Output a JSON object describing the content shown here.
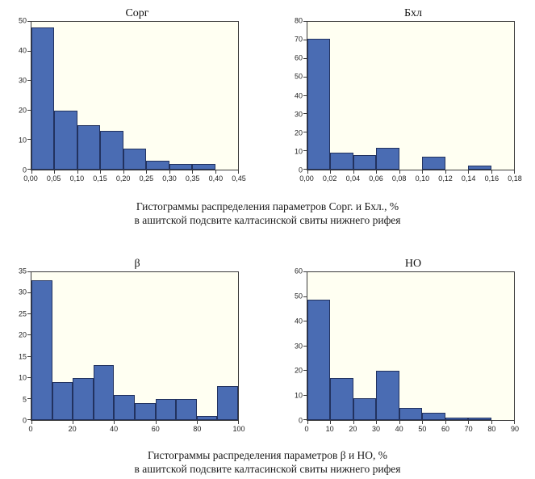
{
  "figure": {
    "captions": [
      {
        "line1": "Гистограммы распределения параметров Сорг. и Бхл., %",
        "line2": "в ашитской подсвите калтасинской свиты нижнего рифея"
      },
      {
        "line1": "Гистограммы распределения параметров β и НО, %",
        "line2": "в ашитской подсвите калтасинской свиты нижнего рифея"
      }
    ]
  },
  "colors": {
    "bar_fill": "#4a6cb3",
    "bar_border": "#22325f",
    "plot_bg": "#fffff2",
    "axis_color": "#3a3a3a"
  },
  "chart_data": [
    {
      "id": "corg",
      "type": "bar",
      "title": "Сорг",
      "xlabel": "",
      "ylabel": "",
      "bin_width": 0.05,
      "x_tick_labels": [
        "0,00",
        "0,05",
        "0,10",
        "0,15",
        "0,20",
        "0,25",
        "0,30",
        "0,35",
        "0,40",
        "0,45"
      ],
      "y_ticks": [
        0,
        10,
        20,
        30,
        40,
        50
      ],
      "ylim": [
        0,
        50
      ],
      "values": [
        48,
        20,
        15,
        13,
        7,
        3,
        2,
        2,
        0
      ],
      "grid": false,
      "legend": false
    },
    {
      "id": "bhl",
      "type": "bar",
      "title": "Бхл",
      "xlabel": "",
      "ylabel": "",
      "bin_width": 0.02,
      "x_tick_labels": [
        "0,00",
        "0,02",
        "0,04",
        "0,06",
        "0,08",
        "0,10",
        "0,12",
        "0,14",
        "0,16",
        "0,18"
      ],
      "y_ticks": [
        0,
        10,
        20,
        30,
        40,
        50,
        60,
        70,
        80
      ],
      "ylim": [
        0,
        80
      ],
      "values": [
        71,
        9,
        8,
        12,
        0,
        7,
        0,
        2,
        0
      ],
      "grid": false,
      "legend": false
    },
    {
      "id": "beta",
      "type": "bar",
      "title": "β",
      "xlabel": "",
      "ylabel": "",
      "bin_width": 10,
      "x_tick_labels": [
        "0",
        "20",
        "40",
        "60",
        "80",
        "100"
      ],
      "y_ticks": [
        0,
        5,
        10,
        15,
        20,
        25,
        30,
        35
      ],
      "ylim": [
        0,
        35
      ],
      "values": [
        33,
        9,
        10,
        13,
        6,
        4,
        5,
        5,
        1,
        8
      ],
      "grid": false,
      "legend": false
    },
    {
      "id": "no",
      "type": "bar",
      "title": "НО",
      "xlabel": "",
      "ylabel": "",
      "bin_width": 10,
      "x_tick_labels": [
        "0",
        "10",
        "20",
        "30",
        "40",
        "50",
        "60",
        "70",
        "80",
        "90"
      ],
      "y_ticks": [
        0,
        10,
        20,
        30,
        40,
        50,
        60
      ],
      "ylim": [
        0,
        60
      ],
      "values": [
        49,
        17,
        9,
        20,
        5,
        3,
        1,
        1,
        0
      ],
      "grid": false,
      "legend": false
    }
  ]
}
